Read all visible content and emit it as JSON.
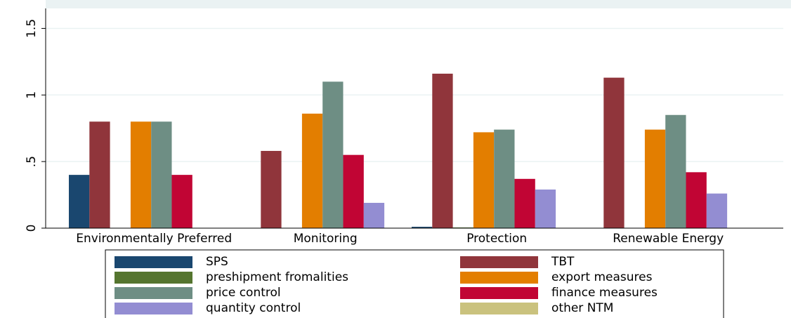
{
  "chart_data": {
    "type": "bar",
    "categories": [
      "Environmentally Preferred",
      "Monitoring",
      "Protection",
      "Renewable Energy"
    ],
    "series": [
      {
        "name": "SPS",
        "color": "#1a476f",
        "values": [
          0.4,
          0,
          0.01,
          0
        ]
      },
      {
        "name": "TBT",
        "color": "#90353b",
        "values": [
          0.8,
          0.58,
          1.16,
          1.13
        ]
      },
      {
        "name": "preshipment fromalities",
        "color": "#55752f",
        "values": [
          0,
          0,
          0.005,
          0
        ]
      },
      {
        "name": "export measures",
        "color": "#e37e00",
        "values": [
          0.8,
          0.86,
          0.72,
          0.74
        ]
      },
      {
        "name": "price control",
        "color": "#6e8e84",
        "values": [
          0.8,
          1.1,
          0.74,
          0.85
        ]
      },
      {
        "name": "finance measures",
        "color": "#c10534",
        "values": [
          0.4,
          0.55,
          0.37,
          0.42
        ]
      },
      {
        "name": "quantity control",
        "color": "#938dd2",
        "values": [
          0,
          0.19,
          0.29,
          0.26
        ]
      },
      {
        "name": "other NTM",
        "color": "#cac27e",
        "values": [
          0,
          0,
          0,
          0
        ]
      }
    ],
    "ylim": [
      0,
      1.65
    ],
    "yticks": [
      0,
      {
        "value": 0.5,
        "label": ".5"
      },
      1,
      1.5
    ],
    "grid": true,
    "legend": "bottom"
  }
}
